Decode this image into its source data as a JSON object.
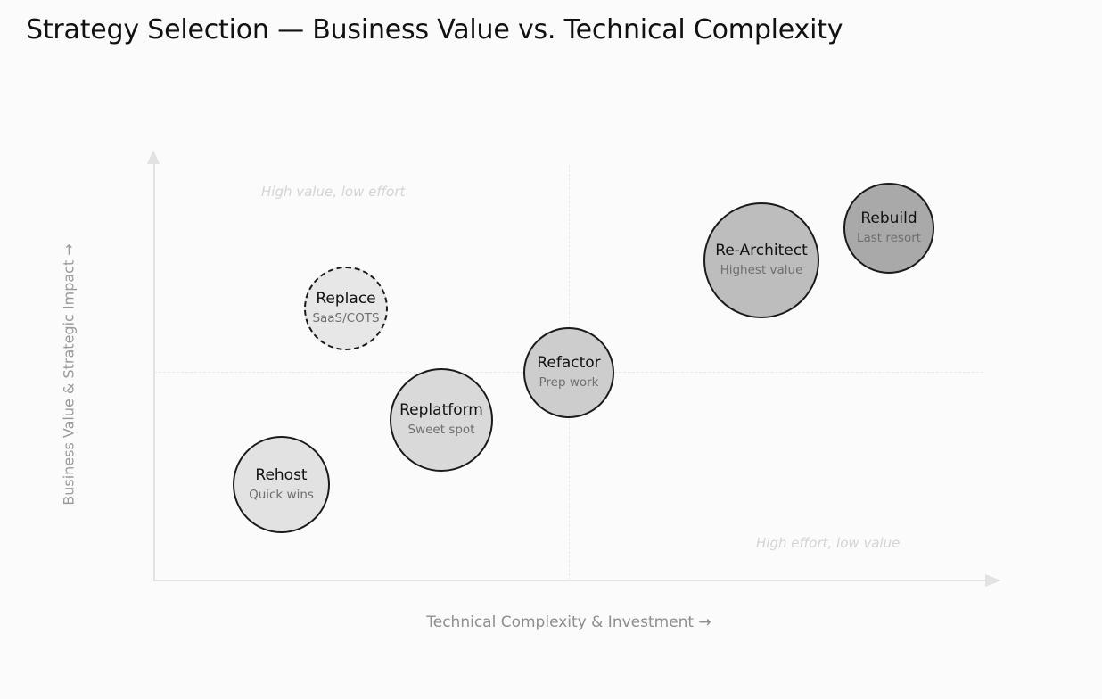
{
  "title": "Strategy Selection — Business Value vs. Technical Complexity",
  "axes": {
    "y_label": "Business Value & Strategic Impact →",
    "x_label": "Technical Complexity & Investment →"
  },
  "quadrants": {
    "top_left": "High value, low effort",
    "bottom_right": "High effort, low value"
  },
  "strategies": [
    {
      "name": "Replace",
      "note": "SaaS/COTS",
      "fill": "#e7e7e7",
      "dashed": true
    },
    {
      "name": "Rehost",
      "note": "Quick wins",
      "fill": "#e2e2e2",
      "dashed": false
    },
    {
      "name": "Replatform",
      "note": "Sweet spot",
      "fill": "#d9d9d9",
      "dashed": false
    },
    {
      "name": "Refactor",
      "note": "Prep work",
      "fill": "#cdcdcd",
      "dashed": false
    },
    {
      "name": "Re-Architect",
      "note": "Highest value",
      "fill": "#bdbdbd",
      "dashed": false
    },
    {
      "name": "Rebuild",
      "note": "Last resort",
      "fill": "#a9a9a9",
      "dashed": false
    }
  ]
}
